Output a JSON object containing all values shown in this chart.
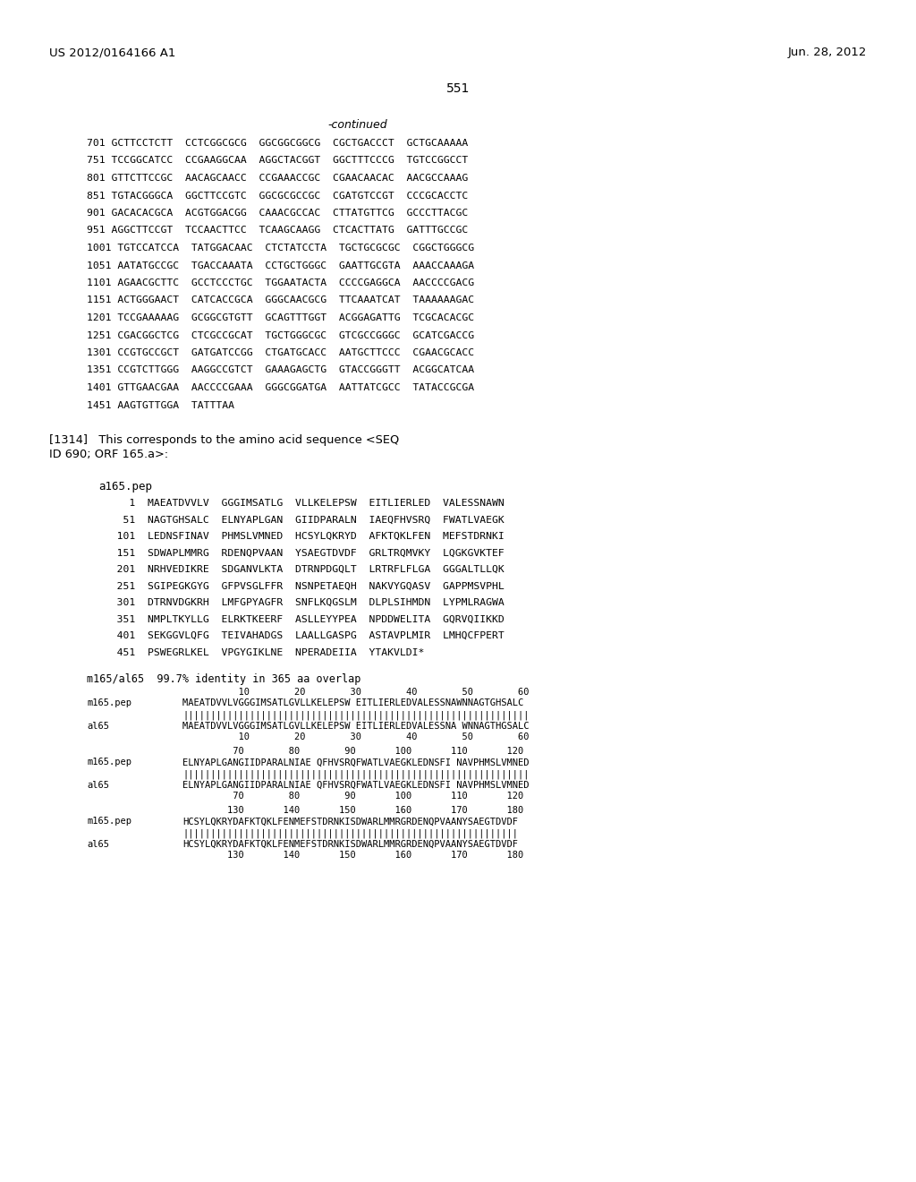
{
  "header_left": "US 2012/0164166 A1",
  "header_right": "Jun. 28, 2012",
  "page_number": "551",
  "bg": "#ffffff",
  "fg": "#000000",
  "continued_label": "-continued",
  "dna_sequences": [
    "701 GCTTCCTCTT  CCTCGGCGCG  GGCGGCGGCG  CGCTGACCCT  GCTGCAAAAA",
    "751 TCCGGCATCC  CCGAAGGCAA  AGGCTACGGT  GGCTTTCCCG  TGTCCGGCCT",
    "801 GTTCTTCCGC  AACAGCAACC  CCGAAACCGC  CGAACAACAC  AACGCCAAAG",
    "851 TGTACGGGCA  GGCTTCCGTC  GGCGCGCCGC  CGATGTCCGT  CCCGCACCTC",
    "901 GACACACGCA  ACGTGGACGG  CAAACGCCAC  CTTATGTTCG  GCCCTTACGC",
    "951 AGGCTTCCGT  TCCAACTTCC  TCAAGCAAGG  CTCACTTATG  GATTTGCCGC",
    "1001 TGTCCATCCA  TATGGACAAC  CTCTATCCTA  TGCTGCGCGC  CGGCTGGGCG",
    "1051 AATATGCCGC  TGACCAAATA  CCTGCTGGGC  GAATTGCGTA  AAACCAAAGA",
    "1101 AGAACGCTTC  GCCTCCCTGC  TGGAATACTA  CCCCGAGGCA  AACCCCGACG",
    "1151 ACTGGGAACT  CATCACCGCA  GGGCAACGCG  TTCAAATCAT  TAAAAAAGAC",
    "1201 TCCGAAAAAG  GCGGCGTGTT  GCAGTTTGGT  ACGGAGATTG  TCGCACACGC",
    "1251 CGACGGCTCG  CTCGCCGCAT  TGCTGGGCGC  GTCGCCGGGC  GCATCGACCG",
    "1301 CCGTGCCGCT  GATGATCCGG  CTGATGCACC  AATGCTTCCC  CGAACGCACC",
    "1351 CCGTCTTGGG  AAGGCCGTCT  GAAAGAGCTG  GTACCGGGTT  ACGGCATCAA",
    "1401 GTTGAACGAA  AACCCCGAAA  GGGCGGATGA  AATTATCGCC  TATACCGCGA",
    "1451 AAGTGTTGGA  TATTTAA"
  ],
  "para_1314_a": "[1314]   This corresponds to the amino acid sequence <SEQ",
  "para_1314_b": "ID 690; ORF 165.a>:",
  "protein_label": "a165.pep",
  "protein_sequences": [
    "     1  MAEATDVVLV  GGGIMSATLG  VLLKELEPSW  EITLIERLED  VALESSNAWN",
    "    51  NAGTGHSALC  ELNYAPLGAN  GIIDPARALN  IAEQFHVSRQ  FWATLVAEGK",
    "   101  LEDNSFINAV  PHMSLVMNED  HCSYLQKRYD  AFKTQKLFEN  MEFSTDRNKI",
    "   151  SDWAPLMMRG  RDENQPVAAN  YSAEGTDVDF  GRLTRQMVKY  LQGKGVKTEF",
    "   201  NRHVEDIKRE  SDGANVLKTA  DTRNPDGQLT  LRTRFLFLGA  GGGALTLLQK",
    "   251  SGIPEGKGYG  GFPVSGLFFR  NSNPETAEQH  NAKVYGQASV  GAPPMSVPHL",
    "   301  DTRNVDGKRH  LMFGPYAGFR  SNFLKQGSLM  DLPLSIHMDN  LYPMLRAGWA",
    "   351  NMPLTKYLLG  ELRKTKEERF  ASLLEYYPEA  NPDDWELITA  GQRVQIIKKD",
    "   401  SEKGGVLQFG  TEIVAHADGS  LAALLGASPG  ASTAVPLMIR  LMHQCFPERT",
    "   451  PSWEGRLKEL  VPGYGIKLNE  NPERADEIIA  YTAKVLDI*"
  ],
  "align_label": "m165/al65  99.7% identity in 365 aa overlap",
  "align_blocks": [
    {
      "num1": "          10        20        30        40        50        60",
      "seq1": "MAEATDVVLVGGGIMSATLGVLLKELEPSW EITLIERLEDVALESSNAWNNAGTGHSALC",
      "bars": "||||||||||||||||||||||||||||||||||||||||||||||||||||||||||||||",
      "seq2": "MAEATDVVLVGGGIMSATLGVLLKELEPSW EITLIERLEDVALESSNA WNNAGTHGSALC",
      "num2": "          10        20        30        40        50        60"
    },
    {
      "num1": "         70        80        90       100       110       120",
      "seq1": "ELNYAPLGANGIIDPARALNIAE QFHVSRQFWATLVAEGKLEDNSFI NAVPHMSLVMNED",
      "bars": "||||||||||||||||||||||||||||||||||||||||||||||||||||||||||||||",
      "seq2": "ELNYAPLGANGIIDPARALNIAE QFHVSRQFWATLVAEGKLEDNSFI NAVPHMSLVMNED",
      "num2": "         70        80        90       100       110       120"
    },
    {
      "num1": "        130       140       150       160       170       180",
      "seq1": "HCSYLQKRYDAFKTQKLFENMEFSTDRNKISDWARLMMRGRDENQPVAANYSAEGTDVDF",
      "bars": "||||||||||||||||||||||||||||||||||||||||||||||||||||||||||||",
      "seq2": "HCSYLQKRYDAFKTQKLFENMEFSTDRNKISDWARLMMRGRDENQPVAANYSAEGTDVDF",
      "num2": "        130       140       150       160       170       180"
    }
  ]
}
